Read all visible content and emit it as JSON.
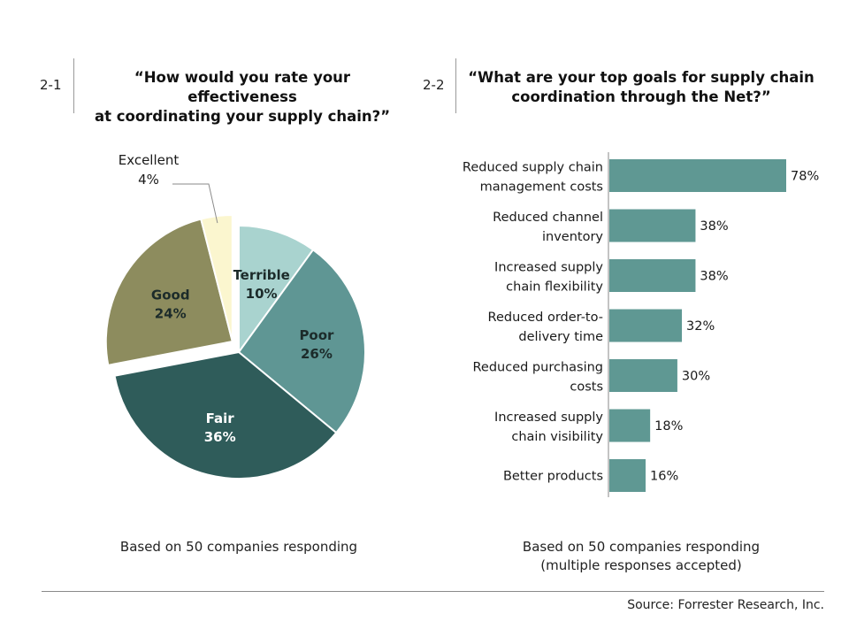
{
  "colors": {
    "excellent": "#fbf6cf",
    "terrible": "#a9d3cf",
    "poor": "#5f9694",
    "fair": "#2f5c5a",
    "good": "#8d8c5e",
    "bars": "#5f9893",
    "dark_text": "#1c2b2a",
    "light_text": "#ffffff"
  },
  "panel1": {
    "number": "2-1",
    "title_line1": "“How would you rate your effectiveness",
    "title_line2": "at coordinating your supply chain?”",
    "footnote": "Based on 50 companies responding"
  },
  "panel2": {
    "number": "2-2",
    "title_line1": "“What are your top goals for supply chain",
    "title_line2": "coordination through the Net?”",
    "footnote_line1": "Based on 50 companies responding",
    "footnote_line2": "(multiple responses accepted)"
  },
  "source": "Source: Forrester Research, Inc.",
  "chart_data": [
    {
      "type": "pie",
      "title": "“How would you rate your effectiveness at coordinating your supply chain?”",
      "slices": [
        {
          "name": "Terrible",
          "value": 10,
          "label": "10%"
        },
        {
          "name": "Poor",
          "value": 26,
          "label": "26%"
        },
        {
          "name": "Fair",
          "value": 36,
          "label": "36%"
        },
        {
          "name": "Good",
          "value": 24,
          "label": "24%",
          "exploded": true
        },
        {
          "name": "Excellent",
          "value": 4,
          "label": "4%",
          "exploded": true
        }
      ],
      "note": "Based on 50 companies responding"
    },
    {
      "type": "bar",
      "orientation": "horizontal",
      "title": "“What are your top goals for supply chain coordination through the Net?”",
      "categories": [
        [
          "Reduced supply chain",
          "management costs"
        ],
        [
          "Reduced channel",
          "inventory"
        ],
        [
          "Increased supply",
          "chain flexibility"
        ],
        [
          "Reduced order-to-",
          "delivery time"
        ],
        [
          "Reduced purchasing",
          "costs"
        ],
        [
          "Increased supply",
          "chain visibility"
        ],
        [
          "Better products"
        ]
      ],
      "values": [
        78,
        38,
        38,
        32,
        30,
        18,
        16
      ],
      "value_labels": [
        "78%",
        "38%",
        "38%",
        "32%",
        "30%",
        "18%",
        "16%"
      ],
      "note": "Based on 50 companies responding (multiple responses accepted)"
    }
  ]
}
